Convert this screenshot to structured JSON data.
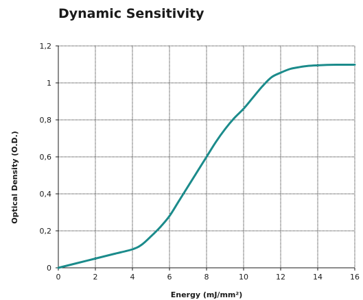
{
  "chart_data": {
    "type": "line",
    "title": "Dynamic Sensitivity",
    "xlabel": "Energy (mJ/mm²)",
    "ylabel": "Optical Density (O.D.)",
    "xlim": [
      0,
      16
    ],
    "ylim": [
      0,
      1.2
    ],
    "x_ticks": [
      0,
      2,
      4,
      6,
      8,
      10,
      12,
      14,
      16
    ],
    "x_tick_labels": [
      "0",
      "2",
      "4",
      "6",
      "8",
      "10",
      "12",
      "14",
      "16"
    ],
    "y_ticks": [
      0,
      0.2,
      0.4,
      0.6,
      0.8,
      1.0,
      1.2
    ],
    "y_tick_labels": [
      "0",
      "0,2",
      "0,4",
      "0,6",
      "0,8",
      "1",
      "1,2"
    ],
    "grid": true,
    "legend": "none",
    "line_color": "#1b8b8b",
    "series": [
      {
        "x": [
          0,
          1,
          2,
          3,
          4,
          4.5,
          5,
          5.5,
          6,
          6.5,
          7,
          7.5,
          8,
          8.5,
          9,
          9.5,
          10,
          10.5,
          11,
          11.5,
          12,
          12.5,
          13,
          13.5,
          14,
          14.5,
          15,
          15.5,
          16
        ],
        "y": [
          0,
          0.025,
          0.05,
          0.075,
          0.1,
          0.125,
          0.17,
          0.22,
          0.28,
          0.36,
          0.44,
          0.52,
          0.6,
          0.68,
          0.75,
          0.81,
          0.86,
          0.92,
          0.98,
          1.03,
          1.055,
          1.075,
          1.085,
          1.092,
          1.095,
          1.097,
          1.098,
          1.098,
          1.098
        ]
      }
    ]
  }
}
